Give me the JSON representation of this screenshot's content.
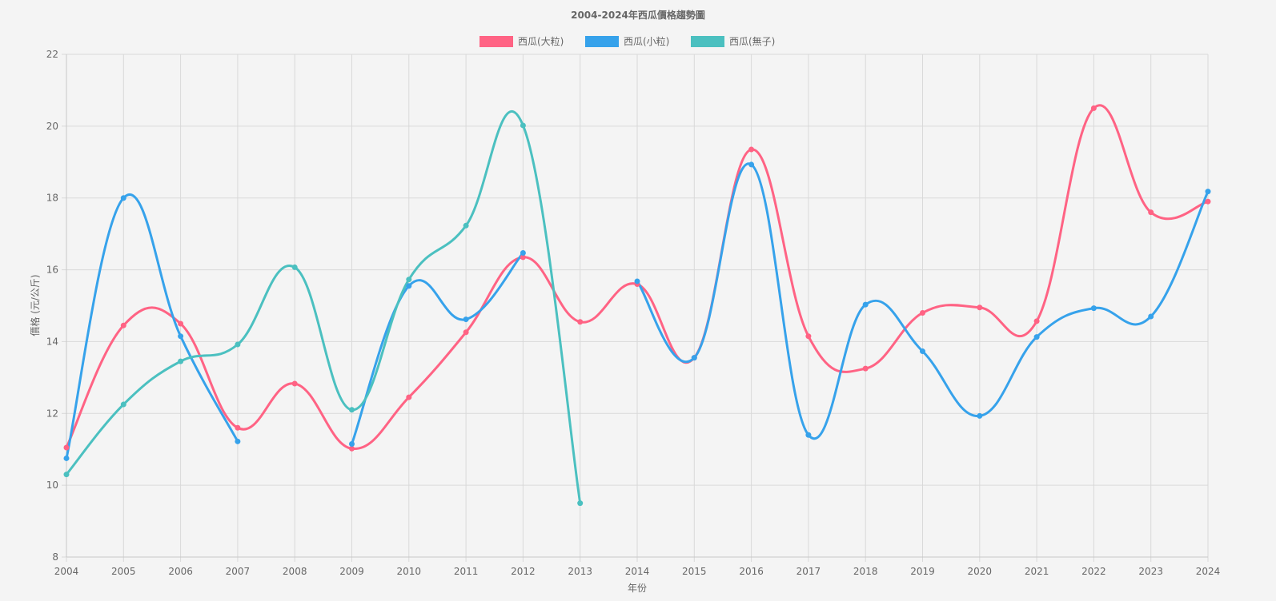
{
  "chart_data": {
    "type": "line",
    "title": "2004-2024年西瓜價格趨勢圖",
    "xlabel": "年份",
    "ylabel": "價格 (元/公斤)",
    "ylim": [
      8,
      22
    ],
    "yticks": [
      8,
      10,
      12,
      14,
      16,
      18,
      20,
      22
    ],
    "grid": true,
    "legend_position": "top",
    "categories": [
      "2004",
      "2005",
      "2006",
      "2007",
      "2008",
      "2009",
      "2010",
      "2011",
      "2012",
      "2013",
      "2014",
      "2015",
      "2016",
      "2017",
      "2018",
      "2019",
      "2020",
      "2021",
      "2022",
      "2023",
      "2024"
    ],
    "series": [
      {
        "name": "西瓜(大粒)",
        "color": "#ff6384",
        "values": [
          11.05,
          14.45,
          14.5,
          11.6,
          12.83,
          11.02,
          12.45,
          14.26,
          16.35,
          14.55,
          15.6,
          13.55,
          19.35,
          14.15,
          13.25,
          14.8,
          14.95,
          14.57,
          20.5,
          17.6,
          17.9
        ]
      },
      {
        "name": "西瓜(小粒)",
        "color": "#36a2eb",
        "values": [
          10.75,
          18.0,
          14.15,
          11.22,
          null,
          11.15,
          15.55,
          14.62,
          16.47,
          null,
          15.68,
          13.55,
          18.93,
          11.4,
          15.03,
          13.73,
          11.93,
          14.13,
          14.93,
          14.7,
          18.18
        ]
      },
      {
        "name": "西瓜(無子)",
        "color": "#4bc0c0",
        "values": [
          10.3,
          12.25,
          13.45,
          13.92,
          16.07,
          12.1,
          15.73,
          17.23,
          20.02,
          9.5,
          null,
          null,
          null,
          null,
          null,
          null,
          null,
          null,
          null,
          null,
          null
        ]
      }
    ]
  }
}
